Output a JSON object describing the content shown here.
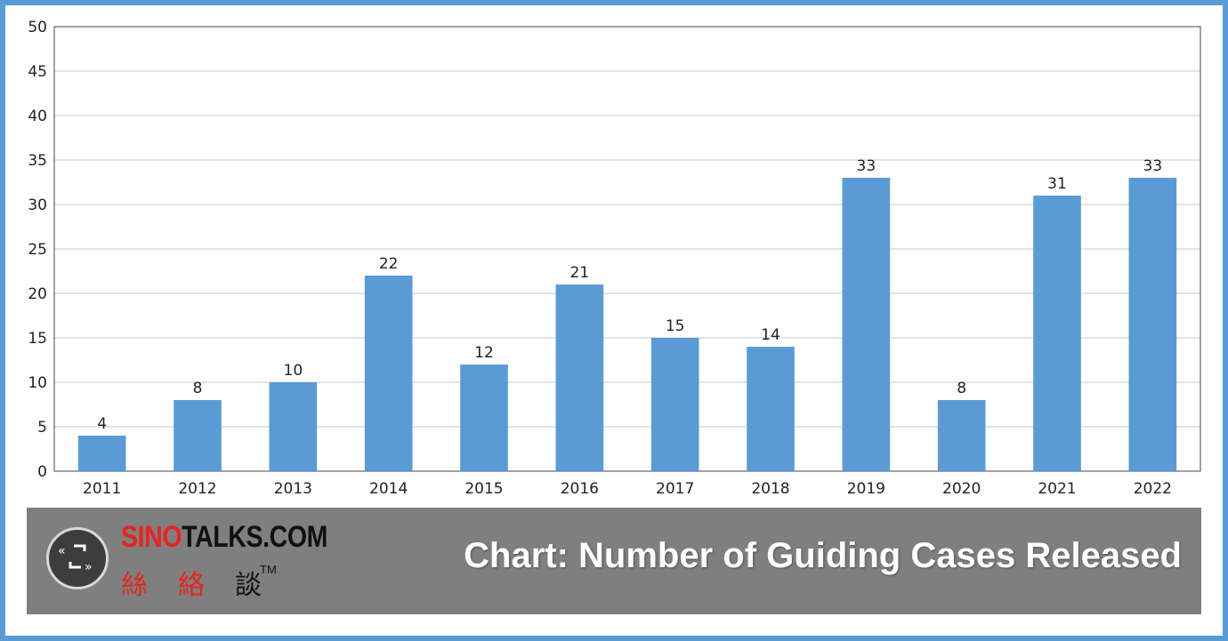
{
  "chart_data": {
    "type": "bar",
    "title": "Chart: Number of Guiding Cases Released",
    "categories": [
      "2011",
      "2012",
      "2013",
      "2014",
      "2015",
      "2016",
      "2017",
      "2018",
      "2019",
      "2020",
      "2021",
      "2022"
    ],
    "values": [
      4,
      8,
      10,
      22,
      12,
      21,
      15,
      14,
      33,
      8,
      31,
      33
    ],
    "ylim": [
      0,
      50
    ],
    "yticks": [
      0,
      5,
      10,
      15,
      20,
      25,
      30,
      35,
      40,
      45,
      50
    ],
    "xlabel": "",
    "ylabel": "",
    "grid": true,
    "data_labels": true,
    "bar_color": "#5b9bd5"
  },
  "banner": {
    "brand_part1": "SINO",
    "brand_part2": "TALKS.COM",
    "brand_cjk": [
      "絲",
      "絡"
    ],
    "brand_cjk_dark": "談",
    "brand_tm": "TM",
    "title": "Chart: Number of Guiding Cases Released",
    "background_color": "#7f7f7f"
  },
  "frame_color": "#5b9bd5"
}
